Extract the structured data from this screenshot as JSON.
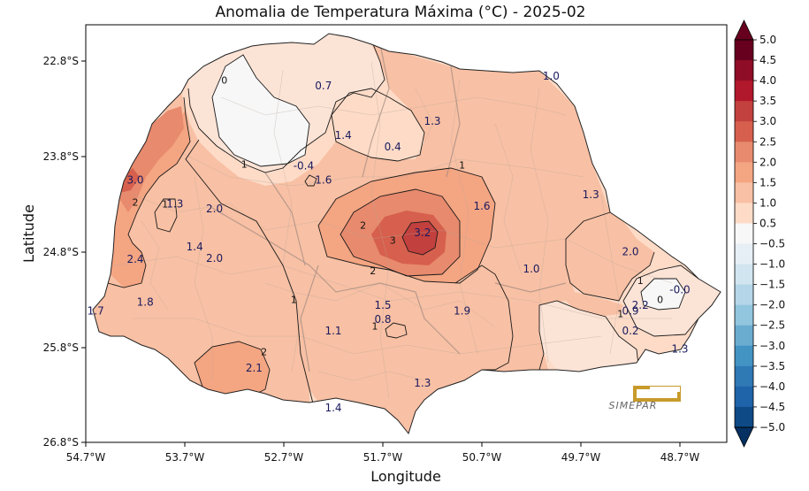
{
  "title": "Anomalia de Temperatura Máxima (°C) - 2025-02",
  "xlabel": "Longitude",
  "ylabel": "Latitude",
  "x_ticks": [
    "54.7°W",
    "53.7°W",
    "52.7°W",
    "51.7°W",
    "50.7°W",
    "49.7°W",
    "48.7°W"
  ],
  "y_ticks": [
    "22.8°S",
    "23.8°S",
    "24.8°S",
    "25.8°S",
    "26.8°S"
  ],
  "colorbar_ticks": [
    "5.0",
    "4.5",
    "4.0",
    "3.5",
    "3.0",
    "2.5",
    "2.0",
    "1.5",
    "1.0",
    "0.5",
    "−0.5",
    "−1.0",
    "−1.5",
    "−2.0",
    "−2.5",
    "−3.0",
    "−3.5",
    "−4.0",
    "−4.5",
    "−5.0"
  ],
  "logo_text": "SIMEPAR",
  "station_values": [
    {
      "value": "0.7",
      "lon": -52.3,
      "lat": -23.06
    },
    {
      "value": "1.0",
      "lon": -50.0,
      "lat": -22.96
    },
    {
      "value": "1.3",
      "lon": -51.2,
      "lat": -23.43
    },
    {
      "value": "1.4",
      "lon": -52.1,
      "lat": -23.58
    },
    {
      "value": "0.4",
      "lon": -51.6,
      "lat": -23.7
    },
    {
      "value": "-0.4",
      "lon": -52.5,
      "lat": -23.9
    },
    {
      "value": "3.0",
      "lon": -54.2,
      "lat": -24.05
    },
    {
      "value": "1.6",
      "lon": -52.3,
      "lat": -24.05
    },
    {
      "value": "1.3",
      "lon": -49.6,
      "lat": -24.2
    },
    {
      "value": "1.3",
      "lon": -53.8,
      "lat": -24.3
    },
    {
      "value": "2.0",
      "lon": -53.4,
      "lat": -24.35
    },
    {
      "value": "1.6",
      "lon": -50.7,
      "lat": -24.32
    },
    {
      "value": "3.2",
      "lon": -51.3,
      "lat": -24.6
    },
    {
      "value": "1.4",
      "lon": -53.6,
      "lat": -24.75
    },
    {
      "value": "2.0",
      "lon": -53.4,
      "lat": -24.87
    },
    {
      "value": "2.0",
      "lon": -49.2,
      "lat": -24.8
    },
    {
      "value": "2.4",
      "lon": -54.2,
      "lat": -24.88
    },
    {
      "value": "1.0",
      "lon": -50.2,
      "lat": -24.98
    },
    {
      "value": "-0.0",
      "lon": -48.7,
      "lat": -25.2
    },
    {
      "value": "1.8",
      "lon": -54.1,
      "lat": -25.33
    },
    {
      "value": "1.5",
      "lon": -51.7,
      "lat": -25.36
    },
    {
      "value": "2.2",
      "lon": -49.1,
      "lat": -25.36
    },
    {
      "value": "1.7",
      "lon": -54.6,
      "lat": -25.42
    },
    {
      "value": "0.9",
      "lon": -49.2,
      "lat": -25.42
    },
    {
      "value": "1.9",
      "lon": -50.9,
      "lat": -25.42
    },
    {
      "value": "0.8",
      "lon": -51.7,
      "lat": -25.51
    },
    {
      "value": "1.1",
      "lon": -52.2,
      "lat": -25.63
    },
    {
      "value": "0.2",
      "lon": -49.2,
      "lat": -25.63
    },
    {
      "value": "1.3",
      "lon": -48.7,
      "lat": -25.82
    },
    {
      "value": "2.1",
      "lon": -53.0,
      "lat": -26.02
    },
    {
      "value": "1.3",
      "lon": -51.3,
      "lat": -26.18
    },
    {
      "value": "1.4",
      "lon": -52.2,
      "lat": -26.44
    }
  ],
  "contour_labels": [
    {
      "value": "0",
      "lon": -53.3,
      "lat": -23.0
    },
    {
      "value": "1",
      "lon": -53.1,
      "lat": -23.88
    },
    {
      "value": "1",
      "lon": -50.9,
      "lat": -23.89
    },
    {
      "value": "1",
      "lon": -53.9,
      "lat": -24.3
    },
    {
      "value": "2",
      "lon": -54.2,
      "lat": -24.28
    },
    {
      "value": "2",
      "lon": -51.9,
      "lat": -24.52
    },
    {
      "value": "3",
      "lon": -51.6,
      "lat": -24.68
    },
    {
      "value": "2",
      "lon": -51.8,
      "lat": -25.0
    },
    {
      "value": "1",
      "lon": -52.6,
      "lat": -25.3
    },
    {
      "value": "1",
      "lon": -49.1,
      "lat": -25.1
    },
    {
      "value": "0",
      "lon": -48.9,
      "lat": -25.3
    },
    {
      "value": "1",
      "lon": -49.3,
      "lat": -25.45
    },
    {
      "value": "1",
      "lon": -51.78,
      "lat": -25.58
    },
    {
      "value": "2",
      "lon": -52.9,
      "lat": -25.85
    }
  ],
  "colors": {
    "neg5": "#053061",
    "neg45": "#0e4a86",
    "neg4": "#1f63a8",
    "neg35": "#2f79b5",
    "neg3": "#4393c3",
    "neg25": "#6aacd0",
    "neg2": "#92c5de",
    "neg15": "#b4d6e8",
    "neg1": "#d1e5f0",
    "neg05": "#e6eff5",
    "zero": "#f7f7f7",
    "p05": "#fbe3d6",
    "p1": "#fddbc7",
    "p15": "#f8c0a4",
    "p2": "#f4a582",
    "p25": "#e78a6d",
    "p3": "#d6604d",
    "p35": "#c2403e",
    "p4": "#b2182b",
    "p45": "#8f0d26",
    "p5": "#67001f"
  }
}
